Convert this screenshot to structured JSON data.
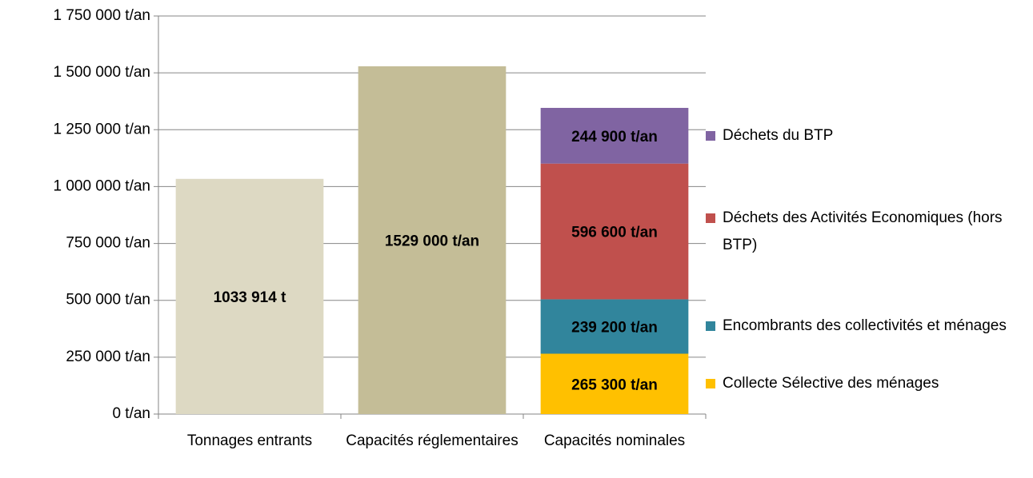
{
  "chart_data": {
    "type": "bar",
    "categories": [
      "Tonnages entrants",
      "Capacités réglementaires",
      "Capacités nominales"
    ],
    "values": [
      1033914,
      1529000,
      null
    ],
    "value_labels": [
      "1033 914 t",
      "1529 000 t/an",
      null
    ],
    "colors": [
      "#ddd9c3",
      "#c4bd97",
      null
    ],
    "series": [
      {
        "name": "Collecte Sélective des ménages",
        "color": "#ffc000",
        "values": [
          null,
          null,
          265300
        ],
        "value_labels": [
          null,
          null,
          "265 300 t/an"
        ]
      },
      {
        "name": "Encombrants des collectivités et ménages",
        "color": "#31859c",
        "values": [
          null,
          null,
          239200
        ],
        "value_labels": [
          null,
          null,
          "239 200 t/an"
        ]
      },
      {
        "name": "Déchets des Activités Economiques (hors BTP)",
        "color": "#c0504d",
        "values": [
          null,
          null,
          596600
        ],
        "value_labels": [
          null,
          null,
          "596 600 t/an"
        ]
      },
      {
        "name": "Déchets du BTP",
        "color": "#8064a2",
        "values": [
          null,
          null,
          244900
        ],
        "value_labels": [
          null,
          null,
          "244 900 t/an"
        ]
      }
    ],
    "ylim": [
      0,
      1750000
    ],
    "yticks": [
      {
        "value": 0,
        "label": "0 t/an"
      },
      {
        "value": 250000,
        "label": "250 000 t/an"
      },
      {
        "value": 500000,
        "label": "500 000 t/an"
      },
      {
        "value": 750000,
        "label": "750 000 t/an"
      },
      {
        "value": 1000000,
        "label": "1 000 000 t/an"
      },
      {
        "value": 1250000,
        "label": "1 250 000 t/an"
      },
      {
        "value": 1500000,
        "label": "1 500 000 t/an"
      },
      {
        "value": 1750000,
        "label": "1 750 000 t/an"
      }
    ],
    "grid": true,
    "legend": "right"
  }
}
